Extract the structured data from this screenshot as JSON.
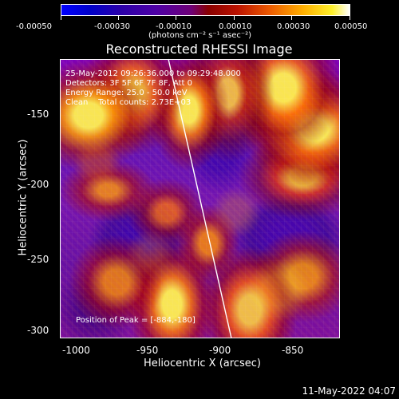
{
  "colorbar": {
    "ticks": [
      "-0.00050",
      "-0.00030",
      "-0.00010",
      "0.00010",
      "0.00030",
      "0.00050"
    ],
    "unit_label": "(photons cm⁻² s⁻¹ asec⁻²)",
    "colors": [
      "#0000ff",
      "#5000aa",
      "#990000",
      "#ff7a00",
      "#ffff00",
      "#ffffff"
    ]
  },
  "plot": {
    "title": "Reconstructed RHESSI Image",
    "lines": [
      "25-May-2012 09:26:36.000 to 09:29:48.000",
      "Detectors: 3F 5F 6F 7F 8F, Att 0",
      "Energy Range: 25.0 - 50.0 keV",
      "Clean    Total counts: 2.73E+03"
    ],
    "peak_label": "Position of Peak = [-884,-180]",
    "x_axis_label": "Heliocentric X (arcsec)",
    "y_axis_label": "Heliocentric Y (arcsec)",
    "x_ticks": [
      "-1000",
      "-950",
      "-900",
      "-850"
    ],
    "y_ticks": [
      "-150",
      "-200",
      "-250",
      "-300"
    ]
  },
  "footer": {
    "timestamp": "11-May-2022 04:07"
  }
}
